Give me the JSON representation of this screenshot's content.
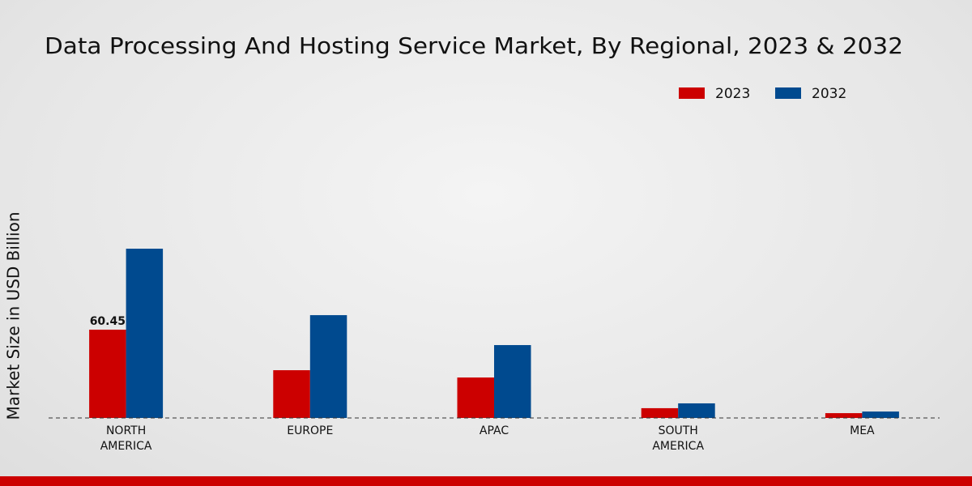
{
  "chart_data": {
    "type": "bar",
    "title": "Data Processing And Hosting Service Market, By Regional, 2023 & 2032",
    "y_axis_label": "Market Size in USD Billion",
    "categories": [
      "NORTH AMERICA",
      "EUROPE",
      "APAC",
      "SOUTH AMERICA",
      "MEA"
    ],
    "series": [
      {
        "name": "2023",
        "color": "#cc0000",
        "values": [
          60.45,
          32.7,
          27.7,
          6.7,
          3.3
        ],
        "value_labels": [
          "60.45",
          null,
          null,
          null,
          null
        ]
      },
      {
        "name": "2032",
        "color": "#004a8f",
        "values": [
          115.9,
          70.4,
          49.9,
          10.0,
          4.4
        ]
      }
    ],
    "ylim": [
      0,
      140
    ],
    "legend": "top-right"
  }
}
